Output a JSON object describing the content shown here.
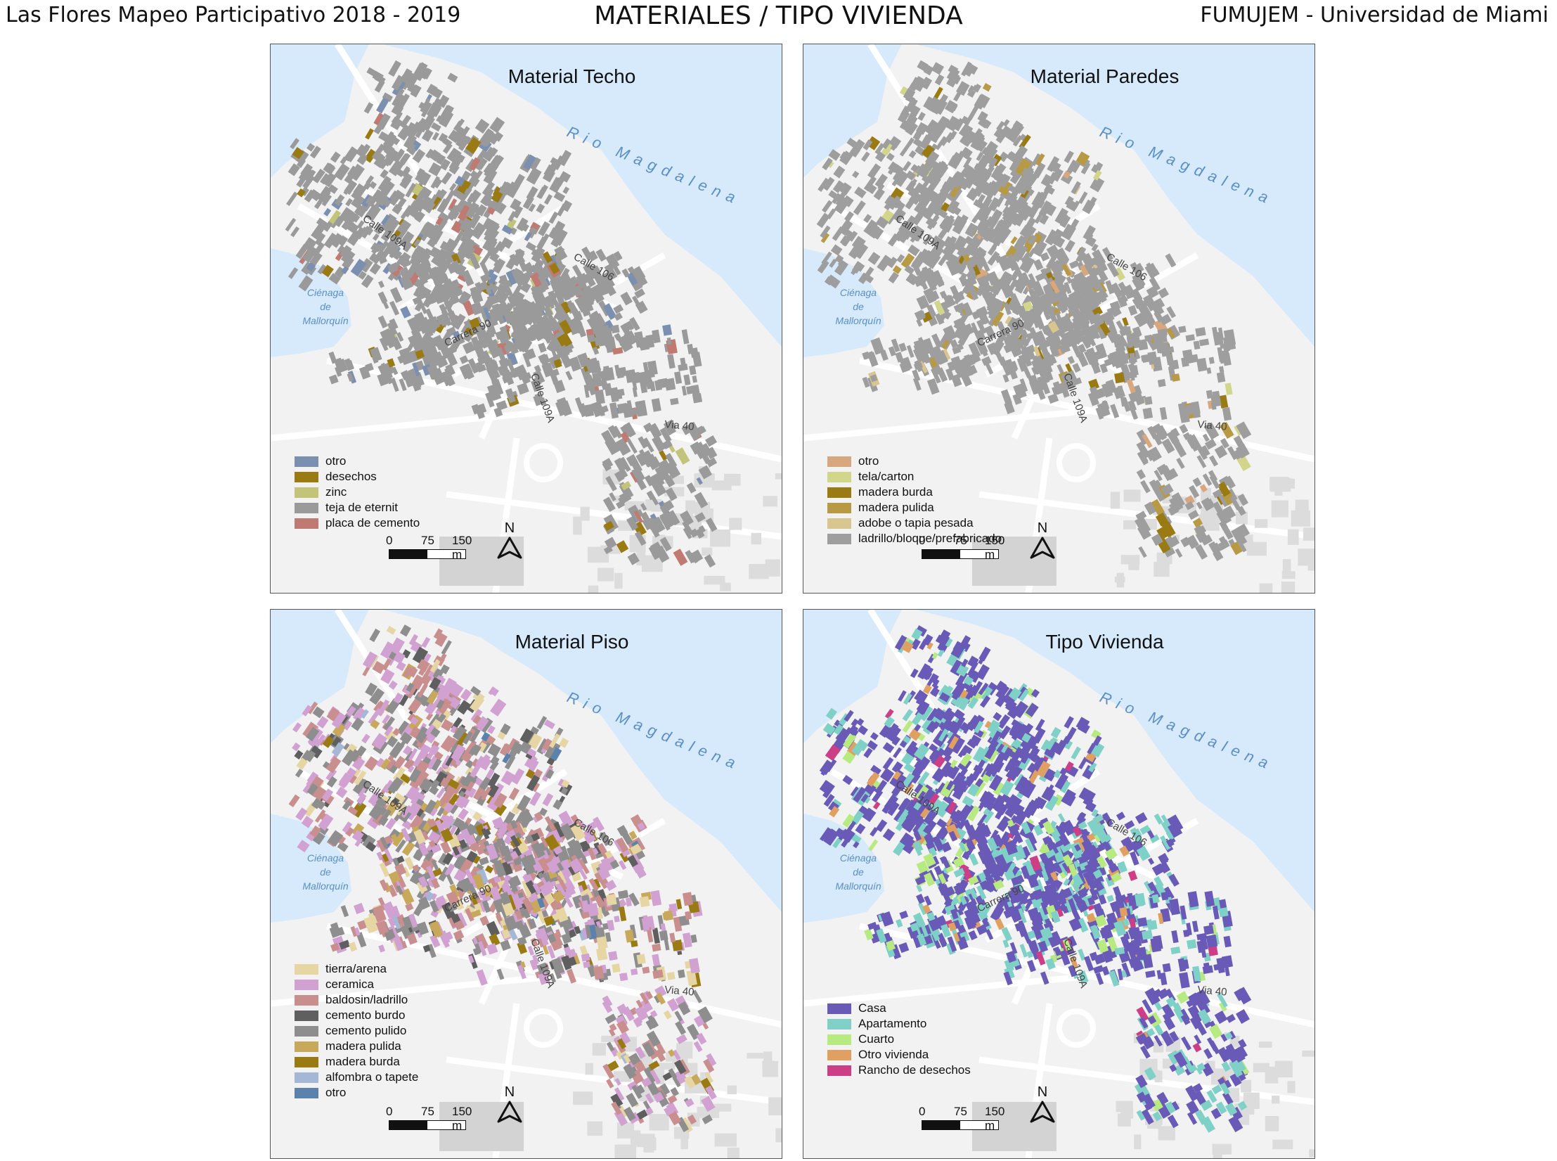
{
  "header": {
    "left": "Las Flores Mapeo Participativo 2018 - 2019",
    "center": "MATERIALES / TIPO VIVIENDA",
    "right": "FUMUJEM - Universidad de Miami"
  },
  "map_labels": {
    "river": "Rio Magdalena",
    "cienaga": [
      "Ciénaga",
      "de",
      "Mallorquín"
    ],
    "streets": [
      "Calle 109A",
      "Calle 106",
      "Carrera 90",
      "Calle 109A",
      "Via 40"
    ]
  },
  "scale": {
    "ticks": [
      "0",
      "75",
      "150 m"
    ]
  },
  "north_label": "N",
  "panels": [
    {
      "title": "Material Techo",
      "legend": [
        {
          "label": "otro",
          "color": "#7b8fb0"
        },
        {
          "label": "desechos",
          "color": "#9a7a12"
        },
        {
          "label": "zinc",
          "color": "#c2c47a"
        },
        {
          "label": "teja de eternit",
          "color": "#9a9a9a"
        },
        {
          "label": "placa de cemento",
          "color": "#c07a72"
        }
      ]
    },
    {
      "title": "Material Paredes",
      "legend": [
        {
          "label": "otro",
          "color": "#d8a77e"
        },
        {
          "label": "tela/carton",
          "color": "#d2d68a"
        },
        {
          "label": "madera burda",
          "color": "#9a7a12"
        },
        {
          "label": "madera pulida",
          "color": "#b89a45"
        },
        {
          "label": "adobe o tapia pesada",
          "color": "#d9c58e"
        },
        {
          "label": "ladrillo/bloque/prefabricado",
          "color": "#9e9e9e"
        }
      ]
    },
    {
      "title": "Material Piso",
      "legend": [
        {
          "label": "tierra/arena",
          "color": "#e6d6a4"
        },
        {
          "label": "ceramica",
          "color": "#d1a1d1"
        },
        {
          "label": "baldosin/ladrillo",
          "color": "#c98f8f"
        },
        {
          "label": "cemento burdo",
          "color": "#5f5f5f"
        },
        {
          "label": "cemento pulido",
          "color": "#8e8e8e"
        },
        {
          "label": "madera pulida",
          "color": "#c8a85a"
        },
        {
          "label": "madera burda",
          "color": "#9a7a12"
        },
        {
          "label": "alfombra o tapete",
          "color": "#a4b8d6"
        },
        {
          "label": "otro",
          "color": "#5b82ad"
        }
      ]
    },
    {
      "title": "Tipo Vivienda",
      "legend": [
        {
          "label": "Casa",
          "color": "#6a5ab8"
        },
        {
          "label": "Apartamento",
          "color": "#7fd1c8"
        },
        {
          "label": "Cuarto",
          "color": "#b8ea82"
        },
        {
          "label": "Otro vivienda",
          "color": "#e0a062"
        },
        {
          "label": "Rancho de desechos",
          "color": "#cc3f86"
        }
      ]
    }
  ]
}
